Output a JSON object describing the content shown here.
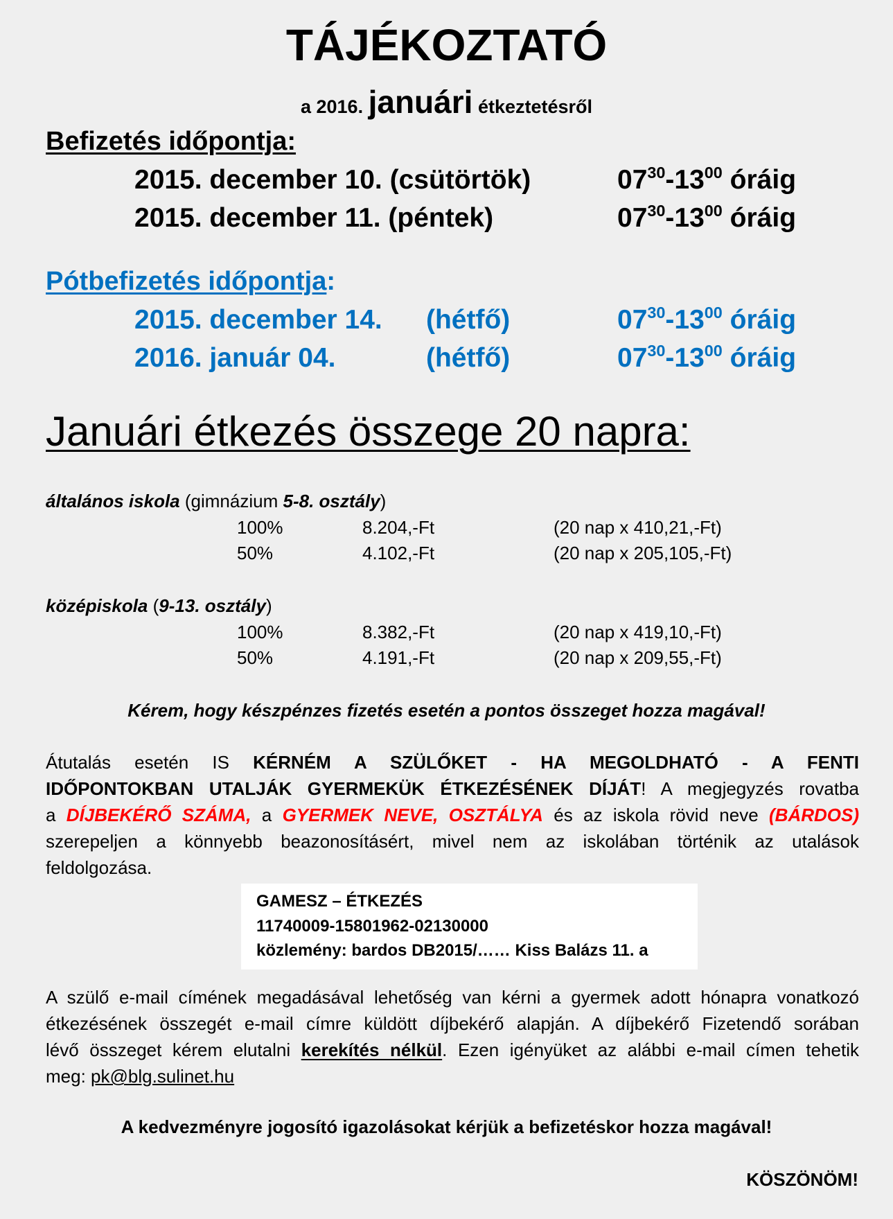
{
  "title": "TÁJÉKOZTATÓ",
  "subtitle": {
    "pre": "a 2016.",
    "big": "januári",
    "post": "étkeztetésről"
  },
  "payment": {
    "heading": "Befizetés időpontja:",
    "rows": [
      {
        "date": "2015. december 10. (csütörtök)",
        "from_h": "07",
        "from_m": "30",
        "to_h": "-13",
        "to_m": "00",
        "suffix": " óráig"
      },
      {
        "date": "2015. december 11. (péntek)",
        "from_h": "07",
        "from_m": "30",
        "to_h": "-13",
        "to_m": "00",
        "suffix": " óráig"
      }
    ]
  },
  "late_payment": {
    "heading": "Pótbefizetés időpontja",
    "colon": ":",
    "color": "#0070c0",
    "rows": [
      {
        "date": "2015. december 14.",
        "day": "(hétfő)",
        "from_h": "07",
        "from_m": "30",
        "to_h": "-13",
        "to_m": "00",
        "suffix": " óráig"
      },
      {
        "date": "2016. január 04.",
        "day": "(hétfő)",
        "from_h": "07",
        "from_m": "30",
        "to_h": "-13",
        "to_m": "00",
        "suffix": " óráig"
      }
    ]
  },
  "amount_heading": "Januári étkezés összege 20 napra:",
  "primary": {
    "name": "általános iskola",
    "open": " (gimnázium ",
    "grades": "5-8. osztály",
    "close": ")",
    "rows": [
      {
        "pct": "100%",
        "amount": "8.204,-Ft",
        "calc": "(20 nap x 410,21,-Ft)"
      },
      {
        "pct": "50%",
        "amount": "4.102,-Ft",
        "calc": "(20 nap x 205,105,-Ft)"
      }
    ]
  },
  "secondary": {
    "name": "középiskola",
    "open": " (",
    "grades": "9-13. osztály",
    "close": ")",
    "rows": [
      {
        "pct": "100%",
        "amount": "8.382,-Ft",
        "calc": "(20 nap x 419,10,-Ft)"
      },
      {
        "pct": "50%",
        "amount": "4.191,-Ft",
        "calc": "(20 nap x 209,55,-Ft)"
      }
    ]
  },
  "cash_note": "Kérem, hogy készpénzes fizetés esetén a pontos összeget hozza magával!",
  "transfer": {
    "p1": "Átutalás esetén IS ",
    "b1": "KÉRNÉM A SZÜLŐKET - HA MEGOLDHATÓ - A FENTI",
    "b2": "IDŐPONTOKBAN UTALJÁK GYERMEKÜK ÉTKEZÉSÉNEK DÍJÁT",
    "p2": "! A megjegyzés rovatba",
    "p3": "a ",
    "r1": "DÍJBEKÉRŐ SZÁMA,",
    "p4": " a ",
    "r2": "GYERMEK NEVE, OSZTÁLYA",
    "p5": " és az iskola rövid neve ",
    "r3": "(BÁRDOS)",
    "p6": "szerepeljen a könnyebb beazonosításért, mivel nem az iskolában történik az utalások",
    "p7": "feldolgozása."
  },
  "bank_box": {
    "line1": "GAMESZ – ÉTKEZÉS",
    "line2": "11740009-15801962-02130000",
    "line3": "közlemény: bardos DB2015/…… Kiss Balázs 11. a"
  },
  "email": {
    "l1": "A szülő e-mail címének megadásával lehetőség van kérni a gyermek adott hónapra vonatkozó",
    "l2": "étkezésének összegét e-mail címre küldött díjbekérő alapján. A díjbekérő Fizetendő sorában",
    "l3a": "lévő összeget kérem elutalni ",
    "l3b": "kerekítés nélkül",
    "l3c": ". Ezen igényüket az alábbi e-mail címen tehetik",
    "l4a": "meg: ",
    "address": "pk@blg.sulinet.hu"
  },
  "discount_note": "A kedvezményre jogosító igazolásokat kérjük a befizetéskor hozza magával!",
  "thanks": "KÖSZÖNÖM!"
}
